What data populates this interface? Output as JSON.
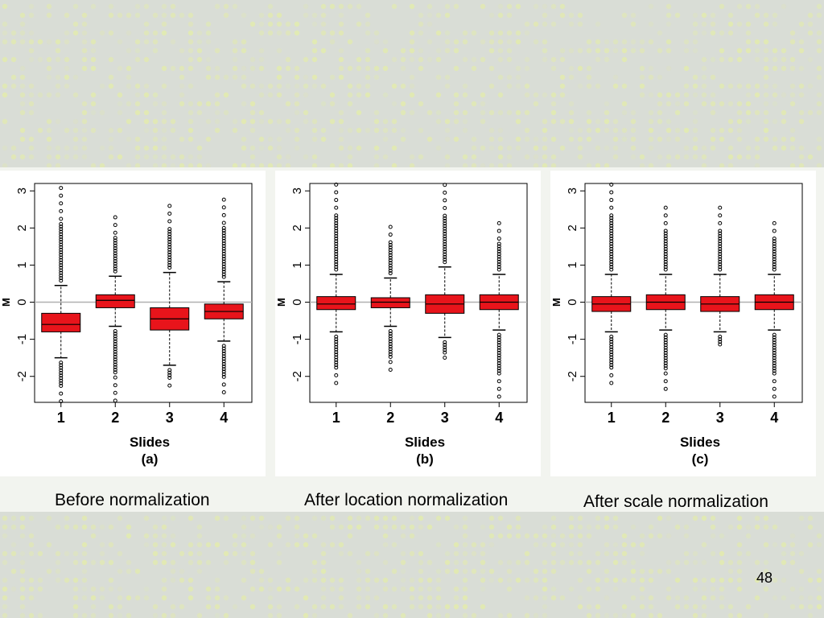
{
  "slide": {
    "page_number": "48",
    "captions": [
      "Before normalization",
      "After location normalization",
      "After scale normalization"
    ]
  },
  "colors": {
    "box_fill": "#e8141b",
    "box_stroke": "#000000",
    "zero_line": "#b0b0b0",
    "band": "#d9ddd6",
    "dot": "#e6f0a0"
  },
  "chart_data": [
    {
      "type": "boxplot",
      "label": "(a)",
      "xlabel": "Slides",
      "ylabel": "M",
      "categories": [
        "1",
        "2",
        "3",
        "4"
      ],
      "ylim": [
        -2.7,
        3.2
      ],
      "yticks": [
        -2,
        -1,
        0,
        1,
        2,
        3
      ],
      "reference_line": 0,
      "boxes": [
        {
          "q1": -0.8,
          "median": -0.6,
          "q3": -0.3,
          "whisker_low": -1.5,
          "whisker_high": 0.45
        },
        {
          "q1": -0.15,
          "median": 0.05,
          "q3": 0.2,
          "whisker_low": -0.65,
          "whisker_high": 0.7
        },
        {
          "q1": -0.75,
          "median": -0.45,
          "q3": -0.15,
          "whisker_low": -1.7,
          "whisker_high": 0.8
        },
        {
          "q1": -0.45,
          "median": -0.25,
          "q3": -0.05,
          "whisker_low": -1.05,
          "whisker_high": 0.55
        }
      ],
      "outliers_high": [
        3.2,
        2.35,
        2.65,
        2.9
      ],
      "outliers_low": [
        -2.7,
        -2.7,
        -2.25,
        -2.6
      ]
    },
    {
      "type": "boxplot",
      "label": "(b)",
      "xlabel": "Slides",
      "ylabel": "M",
      "categories": [
        "1",
        "2",
        "3",
        "4"
      ],
      "ylim": [
        -2.7,
        3.2
      ],
      "yticks": [
        -2,
        -1,
        0,
        1,
        2,
        3
      ],
      "reference_line": 0,
      "boxes": [
        {
          "q1": -0.2,
          "median": -0.05,
          "q3": 0.15,
          "whisker_low": -0.8,
          "whisker_high": 0.75
        },
        {
          "q1": -0.15,
          "median": 0.0,
          "q3": 0.12,
          "whisker_low": -0.65,
          "whisker_high": 0.65
        },
        {
          "q1": -0.3,
          "median": -0.05,
          "q3": 0.2,
          "whisker_low": -0.95,
          "whisker_high": 0.95
        },
        {
          "q1": -0.2,
          "median": 0.0,
          "q3": 0.2,
          "whisker_low": -0.75,
          "whisker_high": 0.75
        }
      ],
      "outliers_high": [
        3.2,
        2.1,
        3.2,
        2.15
      ],
      "outliers_low": [
        -2.25,
        -2.0,
        -1.55,
        -2.6
      ]
    },
    {
      "type": "boxplot",
      "label": "(c)",
      "xlabel": "Slides",
      "ylabel": "M",
      "categories": [
        "1",
        "2",
        "3",
        "4"
      ],
      "ylim": [
        -2.7,
        3.2
      ],
      "yticks": [
        -2,
        -1,
        0,
        1,
        2,
        3
      ],
      "reference_line": 0,
      "boxes": [
        {
          "q1": -0.25,
          "median": -0.05,
          "q3": 0.15,
          "whisker_low": -0.8,
          "whisker_high": 0.75
        },
        {
          "q1": -0.2,
          "median": 0.0,
          "q3": 0.2,
          "whisker_low": -0.75,
          "whisker_high": 0.75
        },
        {
          "q1": -0.25,
          "median": -0.05,
          "q3": 0.15,
          "whisker_low": -0.8,
          "whisker_high": 0.75
        },
        {
          "q1": -0.2,
          "median": 0.0,
          "q3": 0.2,
          "whisker_low": -0.75,
          "whisker_high": 0.75
        }
      ],
      "outliers_high": [
        3.2,
        2.55,
        2.6,
        2.2
      ],
      "outliers_low": [
        -2.25,
        -2.4,
        -1.25,
        -2.7
      ]
    }
  ]
}
